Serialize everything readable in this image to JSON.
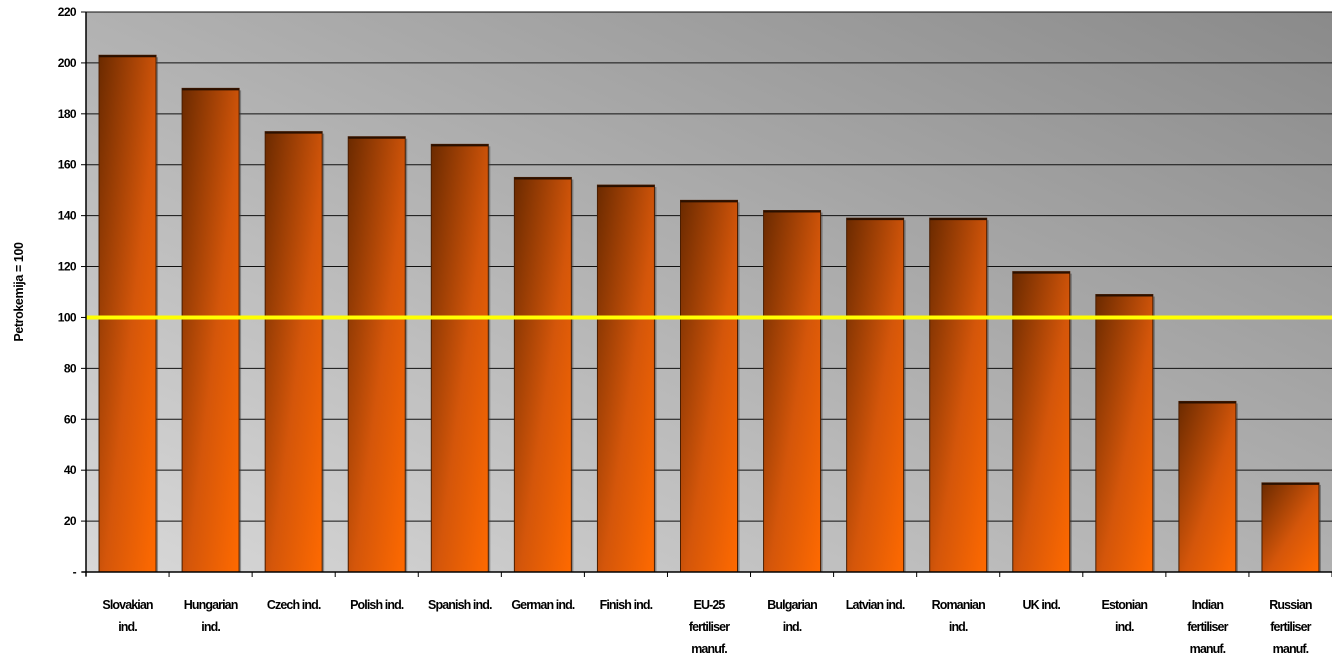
{
  "chart_data": {
    "type": "bar",
    "title": "",
    "ylabel": "Petrokemija = 100",
    "xlabel": "",
    "ylim": [
      0,
      220
    ],
    "yticks": [
      {
        "value": 0,
        "label": "-"
      },
      {
        "value": 20,
        "label": "20"
      },
      {
        "value": 40,
        "label": "40"
      },
      {
        "value": 60,
        "label": "60"
      },
      {
        "value": 80,
        "label": "80"
      },
      {
        "value": 100,
        "label": "100"
      },
      {
        "value": 120,
        "label": "120"
      },
      {
        "value": 140,
        "label": "140"
      },
      {
        "value": 160,
        "label": "160"
      },
      {
        "value": 180,
        "label": "180"
      },
      {
        "value": 200,
        "label": "200"
      },
      {
        "value": 220,
        "label": "220"
      }
    ],
    "grid": true,
    "legend": "none",
    "reference_line": {
      "value": 100,
      "color": "#ffff00"
    },
    "colors": {
      "bar_dark": "#6b2a00",
      "bar_light": "#ff6a00",
      "plot_bg_dark": "#8a8a8a",
      "plot_bg_light": "#d8d8d8",
      "gridline": "#111111"
    },
    "categories": [
      [
        "Slovakian",
        "ind."
      ],
      [
        "Hungarian",
        "ind."
      ],
      [
        "Czech ind."
      ],
      [
        "Polish ind."
      ],
      [
        "Spanish ind."
      ],
      [
        "German ind."
      ],
      [
        "Finish ind."
      ],
      [
        "EU-25",
        "fertiliser",
        "manuf."
      ],
      [
        "Bulgarian",
        "ind."
      ],
      [
        "Latvian ind."
      ],
      [
        "Romanian",
        "ind."
      ],
      [
        "UK ind."
      ],
      [
        "Estonian",
        "ind."
      ],
      [
        "Indian",
        "fertiliser",
        "manuf."
      ],
      [
        "Russian",
        "fertiliser",
        "manuf."
      ]
    ],
    "values": [
      203,
      190,
      173,
      171,
      168,
      155,
      152,
      146,
      142,
      139,
      139,
      118,
      109,
      67,
      35
    ]
  }
}
